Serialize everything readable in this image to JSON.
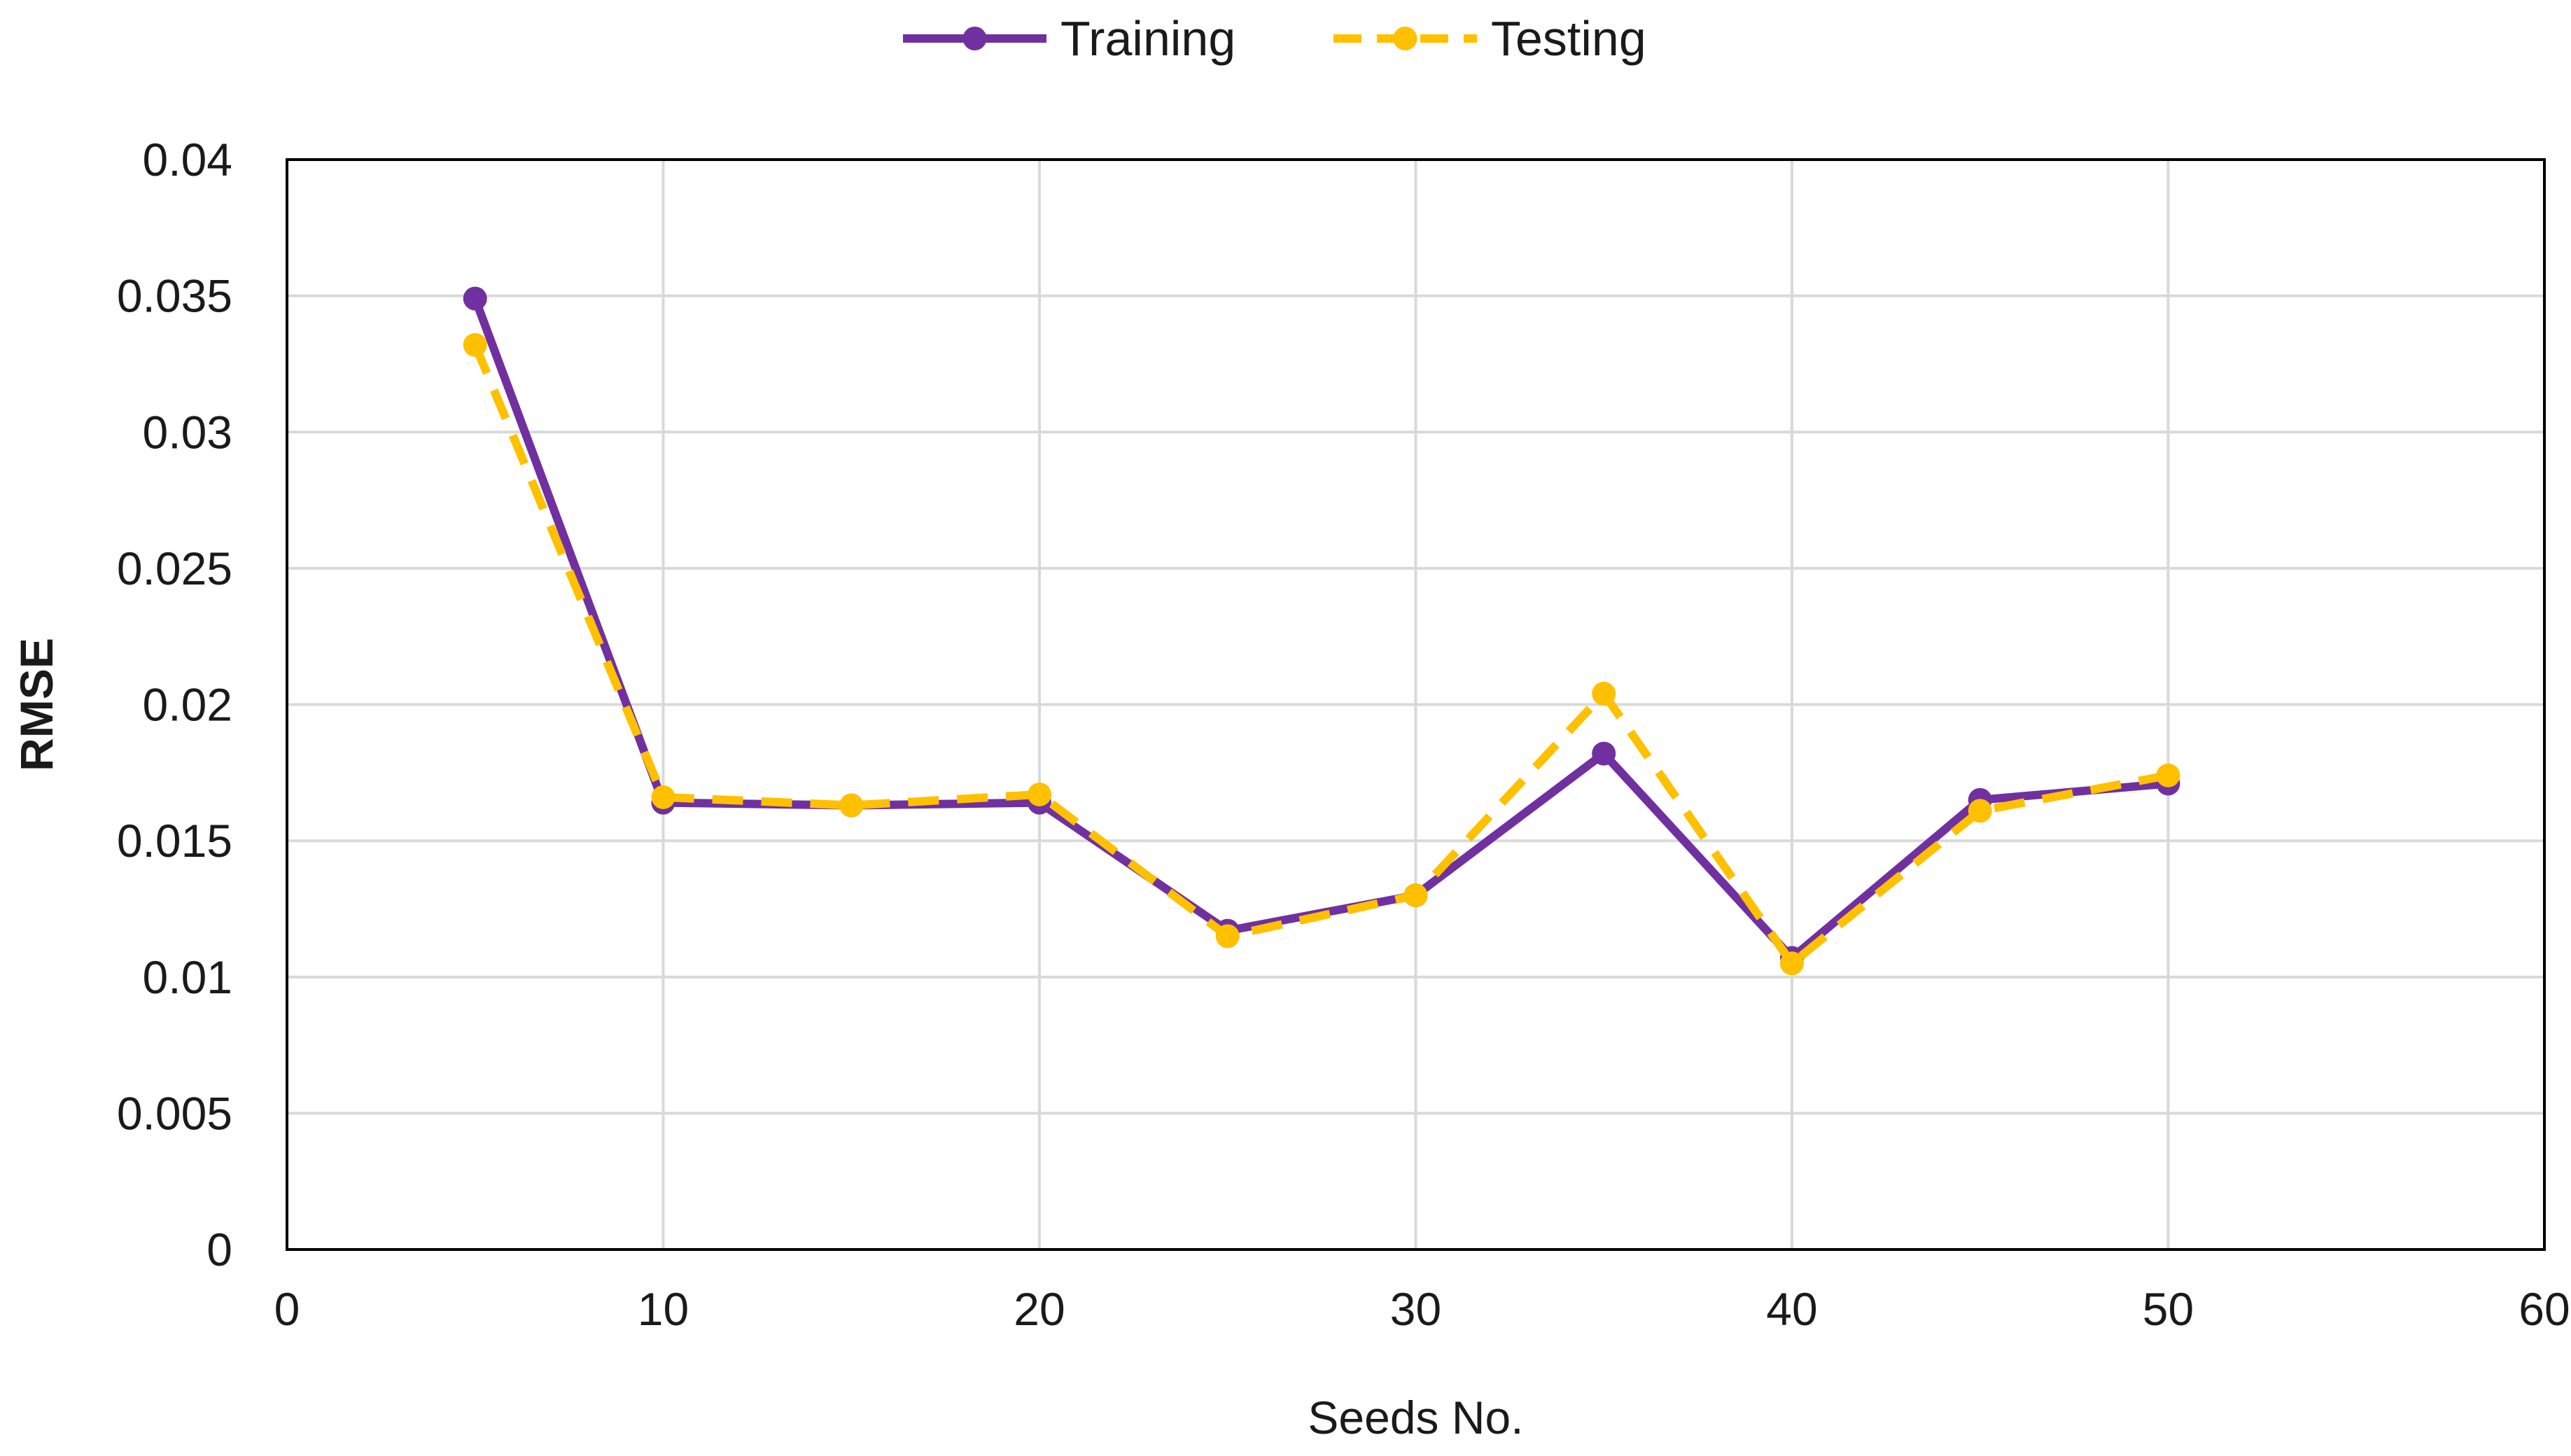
{
  "chart_data": {
    "type": "line",
    "title": "",
    "xlabel": "Seeds No.",
    "ylabel": "RMSE",
    "xlim": [
      0,
      60
    ],
    "ylim": [
      0,
      0.04
    ],
    "x_ticks": [
      0,
      10,
      20,
      30,
      40,
      50,
      60
    ],
    "y_ticks": [
      0,
      0.005,
      0.01,
      0.015,
      0.02,
      0.025,
      0.03,
      0.035,
      0.04
    ],
    "x_tick_labels": [
      "0",
      "10",
      "20",
      "30",
      "40",
      "50",
      "60"
    ],
    "y_tick_labels": [
      "0",
      "0.005",
      "0.01",
      "0.015",
      "0.02",
      "0.025",
      "0.03",
      "0.035",
      "0.04"
    ],
    "grid": true,
    "legend_position": "top-center",
    "x": [
      5,
      10,
      15,
      20,
      25,
      30,
      35,
      40,
      45,
      50
    ],
    "series": [
      {
        "name": "Training",
        "color": "#7030a0",
        "line_style": "solid",
        "marker": "circle",
        "values": [
          0.0349,
          0.0164,
          0.0163,
          0.0164,
          0.0117,
          0.013,
          0.0182,
          0.0107,
          0.0165,
          0.0171
        ]
      },
      {
        "name": "Testing",
        "color": "#ffc000",
        "line_style": "dashed",
        "marker": "circle",
        "values": [
          0.0332,
          0.0166,
          0.0163,
          0.0167,
          0.0115,
          0.013,
          0.0204,
          0.0105,
          0.0161,
          0.0174
        ]
      }
    ]
  }
}
